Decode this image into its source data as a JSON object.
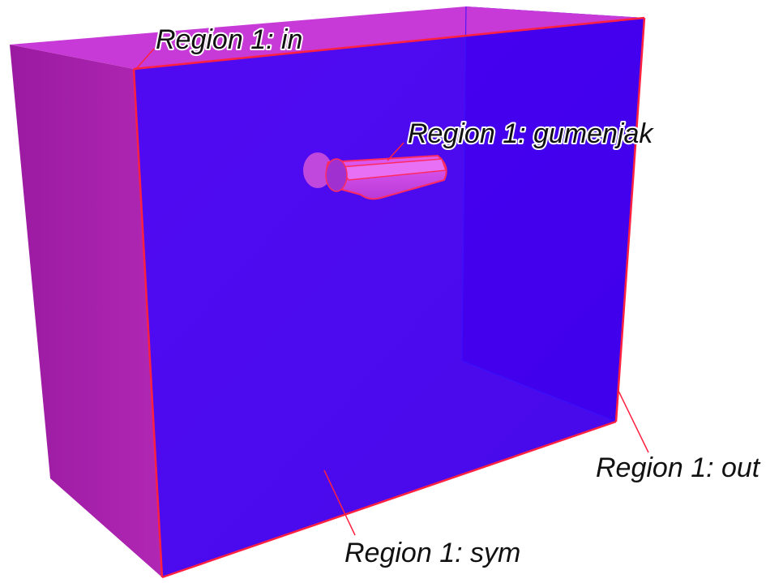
{
  "colors": {
    "background": "#ffffff",
    "left_face": "#a41ea4",
    "top_face": "#c83ad8",
    "back_face": "#2a00ff",
    "front_face": "#4400ee",
    "front_face_highlight": "#5a00f0",
    "edge": "#ff2040",
    "part_surface": "#d040e8",
    "leader_line": "#ff2040",
    "label_text": "#111111"
  },
  "labels": {
    "inlet": "Region 1: in",
    "part": "Region 1: gumenjak",
    "outlet": "Region 1: out",
    "symmetry": "Region 1: sym"
  }
}
